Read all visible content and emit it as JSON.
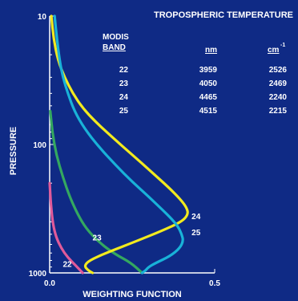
{
  "chart_data": {
    "type": "line",
    "title": "TROPOSPHERIC TEMPERATURE",
    "xlabel": "WEIGHTING FUNCTION",
    "ylabel": "PRESSURE",
    "xlim": [
      0,
      0.5
    ],
    "ylim": [
      1000,
      10
    ],
    "yscale": "log",
    "x_ticks": [
      {
        "value": 0,
        "label": "0.0"
      },
      {
        "value": 0.5,
        "label": "0.5"
      }
    ],
    "y_ticks": [
      {
        "value": 10,
        "label": "10"
      },
      {
        "value": 100,
        "label": "100"
      },
      {
        "value": 1000,
        "label": "1000"
      }
    ],
    "table": {
      "header_band_1": "MODIS",
      "header_band_2": "BAND",
      "header_nm": "nm",
      "header_cm": "cm",
      "header_cm_sup": "-1",
      "rows": [
        {
          "band": "22",
          "nm": "3959",
          "cm": "2526"
        },
        {
          "band": "23",
          "nm": "4050",
          "cm": "2469"
        },
        {
          "band": "24",
          "nm": "4465",
          "cm": "2240"
        },
        {
          "band": "25",
          "nm": "4515",
          "cm": "2215"
        }
      ]
    },
    "series": [
      {
        "name": "22",
        "color": "#e05a9a",
        "label_at": {
          "x": 0.04,
          "p": 900
        },
        "points": [
          [
            0.0,
            200
          ],
          [
            0.004,
            300
          ],
          [
            0.01,
            420
          ],
          [
            0.02,
            530
          ],
          [
            0.035,
            640
          ],
          [
            0.055,
            760
          ],
          [
            0.078,
            870
          ],
          [
            0.1,
            1000
          ]
        ]
      },
      {
        "name": "23",
        "color": "#34a860",
        "label_at": {
          "x": 0.13,
          "p": 560
        },
        "points": [
          [
            0.002,
            55
          ],
          [
            0.008,
            80
          ],
          [
            0.02,
            120
          ],
          [
            0.04,
            180
          ],
          [
            0.062,
            260
          ],
          [
            0.085,
            350
          ],
          [
            0.11,
            450
          ],
          [
            0.15,
            580
          ],
          [
            0.2,
            720
          ],
          [
            0.245,
            830
          ],
          [
            0.28,
            1000
          ]
        ]
      },
      {
        "name": "24",
        "color": "#f2ea1e",
        "label_at": {
          "x": 0.43,
          "p": 380
        },
        "points": [
          [
            0.005,
            10
          ],
          [
            0.012,
            15
          ],
          [
            0.025,
            22
          ],
          [
            0.045,
            30
          ],
          [
            0.07,
            40
          ],
          [
            0.1,
            52
          ],
          [
            0.14,
            67
          ],
          [
            0.19,
            88
          ],
          [
            0.25,
            120
          ],
          [
            0.31,
            165
          ],
          [
            0.36,
            215
          ],
          [
            0.395,
            265
          ],
          [
            0.415,
            310
          ],
          [
            0.42,
            350
          ],
          [
            0.4,
            400
          ],
          [
            0.34,
            470
          ],
          [
            0.26,
            570
          ],
          [
            0.17,
            700
          ],
          [
            0.12,
            800
          ],
          [
            0.105,
            880
          ],
          [
            0.115,
            950
          ],
          [
            0.13,
            1000
          ]
        ]
      },
      {
        "name": "25",
        "color": "#19b2d8",
        "label_at": {
          "x": 0.43,
          "p": 510
        },
        "points": [
          [
            0.015,
            10
          ],
          [
            0.022,
            15
          ],
          [
            0.03,
            22
          ],
          [
            0.04,
            30
          ],
          [
            0.055,
            40
          ],
          [
            0.075,
            55
          ],
          [
            0.105,
            75
          ],
          [
            0.15,
            105
          ],
          [
            0.2,
            145
          ],
          [
            0.25,
            195
          ],
          [
            0.3,
            255
          ],
          [
            0.34,
            320
          ],
          [
            0.37,
            380
          ],
          [
            0.39,
            440
          ],
          [
            0.4,
            500
          ],
          [
            0.405,
            560
          ],
          [
            0.395,
            640
          ],
          [
            0.365,
            740
          ],
          [
            0.32,
            840
          ],
          [
            0.3,
            900
          ],
          [
            0.29,
            960
          ],
          [
            0.28,
            1000
          ]
        ]
      }
    ]
  }
}
